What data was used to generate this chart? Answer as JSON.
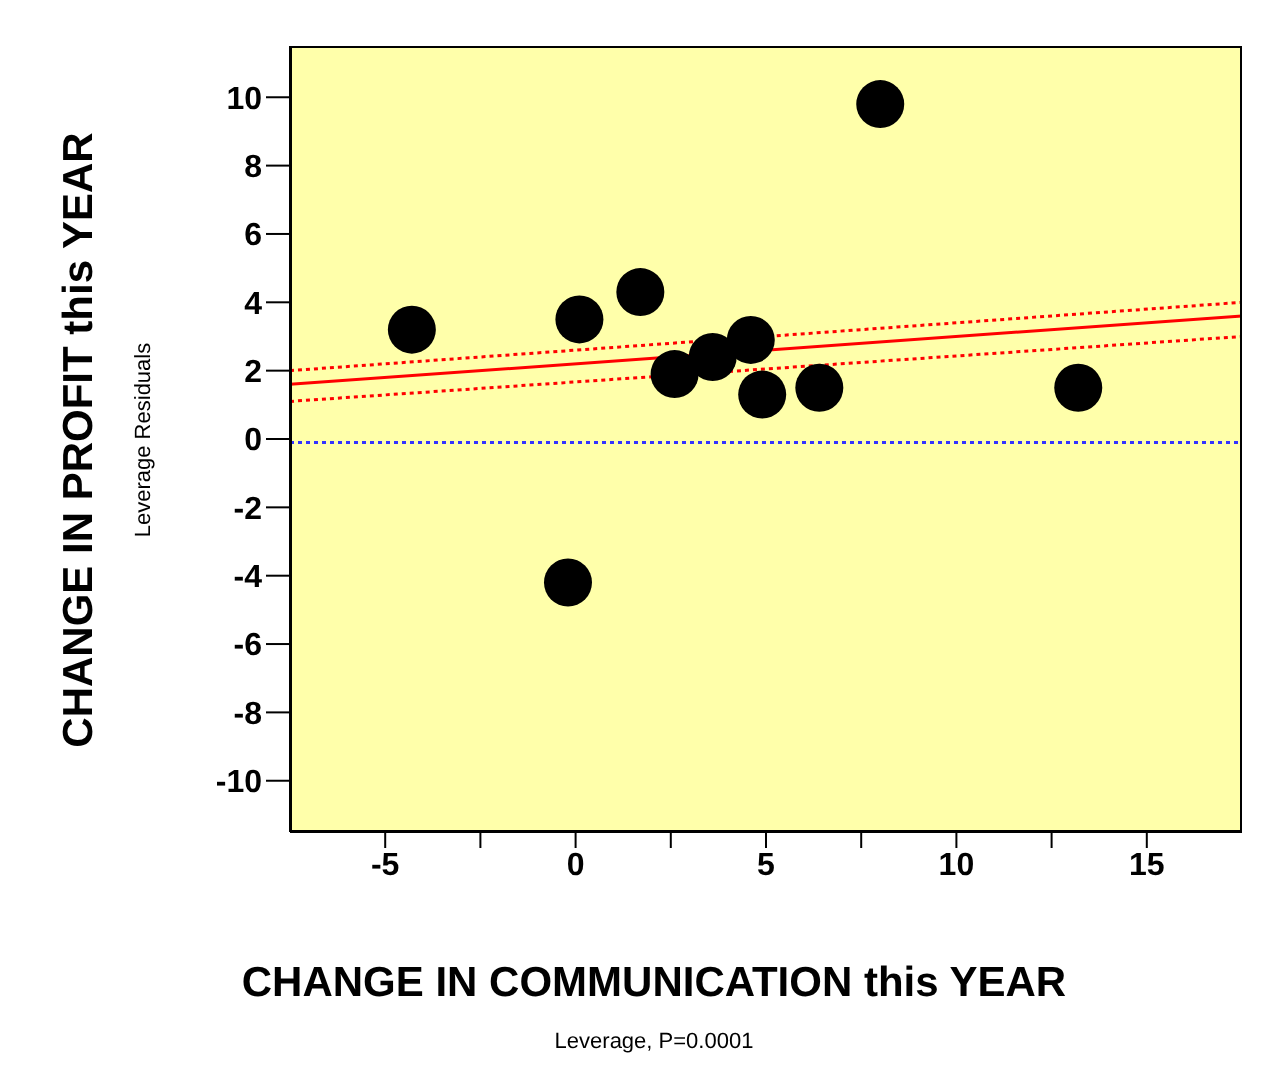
{
  "chart_data": {
    "type": "scatter",
    "xlabel": "CHANGE IN COMMUNICATION this YEAR",
    "ylabel": "CHANGE IN PROFIT this YEAR",
    "annotations": [
      "Leverage Residuals",
      "Leverage, P=0.0001"
    ],
    "marker": "circle",
    "xlim": [
      -7.5,
      17.5
    ],
    "xticks": [
      -5,
      {
        "value": -2.5,
        "label": null
      },
      0,
      {
        "value": 2.5,
        "label": null
      },
      5,
      {
        "value": 7.5,
        "label": null
      },
      10,
      {
        "value": 12.5,
        "label": null
      },
      15
    ],
    "ylim": [
      -11.5,
      11.5
    ],
    "yticks": [
      -10,
      -8,
      -6,
      -4,
      -2,
      0,
      2,
      4,
      6,
      8,
      10
    ],
    "ref_lines": [
      {
        "axis": "y",
        "value": -0.1,
        "color": "#3333ff",
        "line_style": "dotted"
      }
    ],
    "series": [
      {
        "color": "#000000",
        "x": [
          -4.3,
          0.1,
          1.7,
          8.0,
          2.6,
          3.6,
          4.6,
          4.9,
          6.4,
          13.2,
          -0.2
        ],
        "values": [
          3.2,
          3.5,
          4.3,
          9.8,
          1.9,
          2.4,
          2.9,
          1.3,
          1.5,
          1.5,
          -4.2
        ]
      },
      {
        "type": "line",
        "color": "#ff0000",
        "line_style": "solid",
        "marker": "none",
        "x": [
          -7.5,
          17.5
        ],
        "values": [
          1.6,
          3.6
        ]
      },
      {
        "type": "line",
        "color": "#ff0000",
        "line_style": "dotted",
        "marker": "none",
        "x": [
          -7.5,
          17.5
        ],
        "values": [
          2.0,
          4.0
        ]
      },
      {
        "type": "line",
        "color": "#ff0000",
        "line_style": "dotted",
        "marker": "none",
        "x": [
          -7.5,
          17.5
        ],
        "values": [
          1.1,
          3.0
        ]
      }
    ]
  }
}
